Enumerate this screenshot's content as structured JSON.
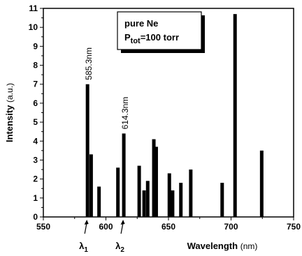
{
  "chart_data": {
    "type": "bar",
    "xlabel": "Wavelength",
    "xlabel_unit": "(nm)",
    "ylabel": "Intensity",
    "ylabel_unit": "(a.u.)",
    "xlim": [
      550,
      750
    ],
    "ylim": [
      0,
      11
    ],
    "xticks": [
      550,
      600,
      650,
      700,
      750
    ],
    "yticks": [
      0,
      1,
      2,
      3,
      4,
      5,
      6,
      7,
      8,
      9,
      10,
      11
    ],
    "legend": {
      "line1": "pure Ne",
      "line2_main": "P",
      "line2_sub": "tot",
      "line2_rest": "=100 torr",
      "placement": "top-center"
    },
    "annotations": [
      {
        "text": "585.3nm",
        "x": 585.3
      },
      {
        "text": "614.3nm",
        "x": 614.3
      }
    ],
    "markers": [
      {
        "symbol": "λ",
        "sub": "1",
        "x": 585.3
      },
      {
        "symbol": "λ",
        "sub": "2",
        "x": 614.3
      }
    ],
    "points": [
      {
        "x": 585.3,
        "y": 7.0
      },
      {
        "x": 588.2,
        "y": 3.3
      },
      {
        "x": 594.5,
        "y": 1.6
      },
      {
        "x": 609.6,
        "y": 2.6
      },
      {
        "x": 614.3,
        "y": 4.4
      },
      {
        "x": 626.6,
        "y": 2.7
      },
      {
        "x": 630.5,
        "y": 1.4
      },
      {
        "x": 633.4,
        "y": 1.9
      },
      {
        "x": 638.3,
        "y": 4.1
      },
      {
        "x": 640.2,
        "y": 3.7
      },
      {
        "x": 650.7,
        "y": 2.3
      },
      {
        "x": 653.3,
        "y": 1.4
      },
      {
        "x": 659.9,
        "y": 1.8
      },
      {
        "x": 667.8,
        "y": 2.5
      },
      {
        "x": 692.9,
        "y": 1.8
      },
      {
        "x": 703.2,
        "y": 10.7
      },
      {
        "x": 724.5,
        "y": 3.5
      }
    ]
  }
}
